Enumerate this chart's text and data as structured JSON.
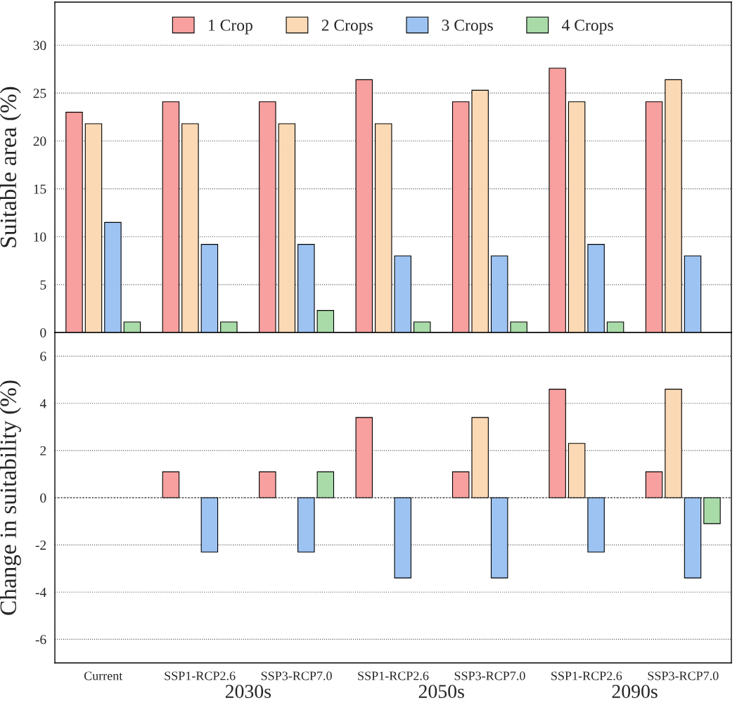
{
  "chart_data": [
    {
      "type": "bar",
      "ylabel": "Suitable area (%)",
      "categories": [
        null,
        null,
        null,
        null,
        null,
        null,
        null
      ],
      "series": [
        {
          "name": "1 Crop",
          "color": "#f8a0a0",
          "values": [
            23.0,
            24.1,
            24.1,
            26.4,
            24.1,
            27.6,
            24.1
          ]
        },
        {
          "name": "2 Crops",
          "color": "#fbd9b5",
          "values": [
            21.8,
            21.8,
            21.8,
            21.8,
            25.3,
            24.1,
            26.4
          ]
        },
        {
          "name": "3 Crops",
          "color": "#9dc3f3",
          "values": [
            11.5,
            9.2,
            9.2,
            8.0,
            8.0,
            9.2,
            8.0
          ]
        },
        {
          "name": "4 Crops",
          "color": "#a8dba8",
          "values": [
            1.1,
            1.1,
            2.3,
            1.1,
            1.1,
            1.1,
            null
          ]
        }
      ],
      "ylim": [
        0,
        34.5
      ],
      "yticks": [
        0,
        5,
        10,
        15,
        20,
        25,
        30
      ],
      "grid": "y",
      "legend": "top",
      "tick_labels": "y"
    },
    {
      "type": "bar",
      "ylabel": "Change in suitability (%)",
      "categories": [
        "Current",
        "SSP1-RCP2.6",
        "SSP3-RCP7.0",
        "SSP1-RCP2.6",
        "SSP3-RCP7.0",
        "SSP1-RCP2.6",
        "SSP3-RCP7.0"
      ],
      "series": [
        {
          "color": "#f8a0a0",
          "values": [
            null,
            1.1,
            1.1,
            3.4,
            1.1,
            4.6,
            1.1
          ]
        },
        {
          "color": "#fbd9b5",
          "values": [
            null,
            null,
            null,
            null,
            3.4,
            2.3,
            4.6
          ]
        },
        {
          "color": "#9dc3f3",
          "values": [
            null,
            -2.3,
            -2.3,
            -3.4,
            -3.4,
            -2.3,
            -3.4
          ]
        },
        {
          "color": "#a8dba8",
          "values": [
            null,
            null,
            1.1,
            null,
            null,
            null,
            -1.1
          ]
        }
      ],
      "ylim": [
        -7,
        7
      ],
      "yticks": [
        {
          "value": -6,
          "label": "-6"
        },
        {
          "value": -4,
          "label": "-4"
        },
        {
          "value": -2,
          "label": "-2"
        },
        0,
        2,
        4,
        6
      ],
      "grid": "y",
      "ref_lines": [
        {
          "axis": "y",
          "value": 0,
          "color": "#333333",
          "line_style": "dotted"
        }
      ],
      "annotations": [
        "2030s",
        "2050s",
        "2090s"
      ]
    }
  ]
}
